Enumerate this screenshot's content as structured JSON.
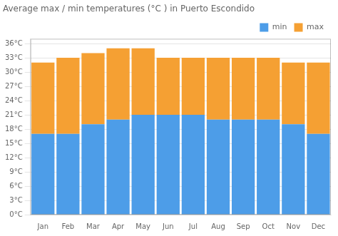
{
  "chart_data": {
    "type": "bar",
    "title": "Average max / min temperatures (°C ) in Puerto Escondido",
    "categories": [
      "Jan",
      "Feb",
      "Mar",
      "Apr",
      "May",
      "Jun",
      "Jul",
      "Aug",
      "Sep",
      "Oct",
      "Nov",
      "Dec"
    ],
    "series": [
      {
        "name": "min",
        "color": "#4d9de8",
        "values": [
          17,
          17,
          19,
          20,
          21,
          21,
          21,
          20,
          20,
          20,
          19,
          17
        ]
      },
      {
        "name": "max",
        "color": "#f5a033",
        "values": [
          15,
          16,
          15,
          15,
          14,
          12,
          12,
          13,
          13,
          13,
          13,
          15
        ]
      }
    ],
    "stacked": true,
    "ylim": [
      0,
      37
    ],
    "yticks": [
      {
        "value": 0,
        "label": "0°C"
      },
      {
        "value": 3,
        "label": "3°C"
      },
      {
        "value": 6,
        "label": "6°C"
      },
      {
        "value": 9,
        "label": "9°C"
      },
      {
        "value": 12,
        "label": "12°C"
      },
      {
        "value": 15,
        "label": "15°C"
      },
      {
        "value": 18,
        "label": "18°C"
      },
      {
        "value": 21,
        "label": "21°C"
      },
      {
        "value": 24,
        "label": "24°C"
      },
      {
        "value": 27,
        "label": "27°C"
      },
      {
        "value": 30,
        "label": "30°C"
      },
      {
        "value": 33,
        "label": "33°C"
      },
      {
        "value": 36,
        "label": "36°C"
      }
    ],
    "grid": true,
    "legend": "upper right"
  }
}
